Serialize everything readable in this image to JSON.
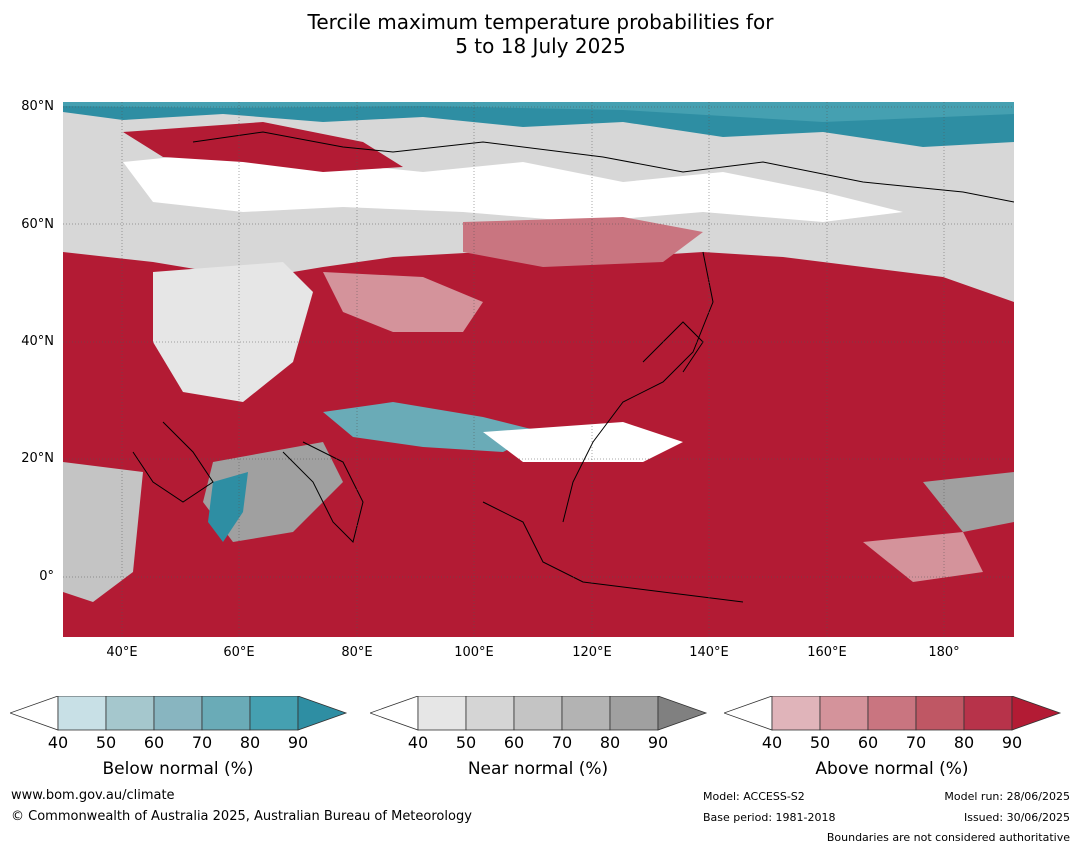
{
  "title": {
    "line1": "Tercile maximum temperature probabilities for",
    "line2": "5 to 18 July 2025"
  },
  "map": {
    "lat_labels": [
      "80°N",
      "60°N",
      "40°N",
      "20°N",
      "0°"
    ],
    "lon_labels": [
      "40°E",
      "60°E",
      "80°E",
      "100°E",
      "120°E",
      "140°E",
      "160°E",
      "180°"
    ],
    "colors": {
      "ocean_above": "#b31b34",
      "land_line": "#000000",
      "border_line": "#808080",
      "grid": "#555555"
    }
  },
  "colorbars": [
    {
      "name": "Below normal (%)",
      "ticks": [
        "40",
        "50",
        "60",
        "70",
        "80",
        "90"
      ],
      "colors": [
        "#ffffff",
        "#c8e0e6",
        "#a5c7cd",
        "#88b5c0",
        "#6aabb7",
        "#45a0b1",
        "#2e8ea3"
      ]
    },
    {
      "name": "Near normal (%)",
      "ticks": [
        "40",
        "50",
        "60",
        "70",
        "80",
        "90"
      ],
      "colors": [
        "#ffffff",
        "#e6e6e6",
        "#d5d5d5",
        "#c4c4c4",
        "#b3b3b3",
        "#a0a0a0",
        "#808080"
      ]
    },
    {
      "name": "Above normal (%)",
      "ticks": [
        "40",
        "50",
        "60",
        "70",
        "80",
        "90"
      ],
      "colors": [
        "#ffffff",
        "#e0b4ba",
        "#d4939b",
        "#c97580",
        "#bf5764",
        "#b7334a",
        "#b31b34"
      ]
    }
  ],
  "footer": {
    "url": "www.bom.gov.au/climate",
    "copyright": "© Commonwealth of Australia 2025, Australian Bureau of Meteorology",
    "model": "Model: ACCESS-S2",
    "base_period": "Base period: 1981-2018",
    "model_run": "Model run: 28/06/2025",
    "issued": "Issued: 30/06/2025",
    "boundaries": "Boundaries are not considered authoritative"
  }
}
